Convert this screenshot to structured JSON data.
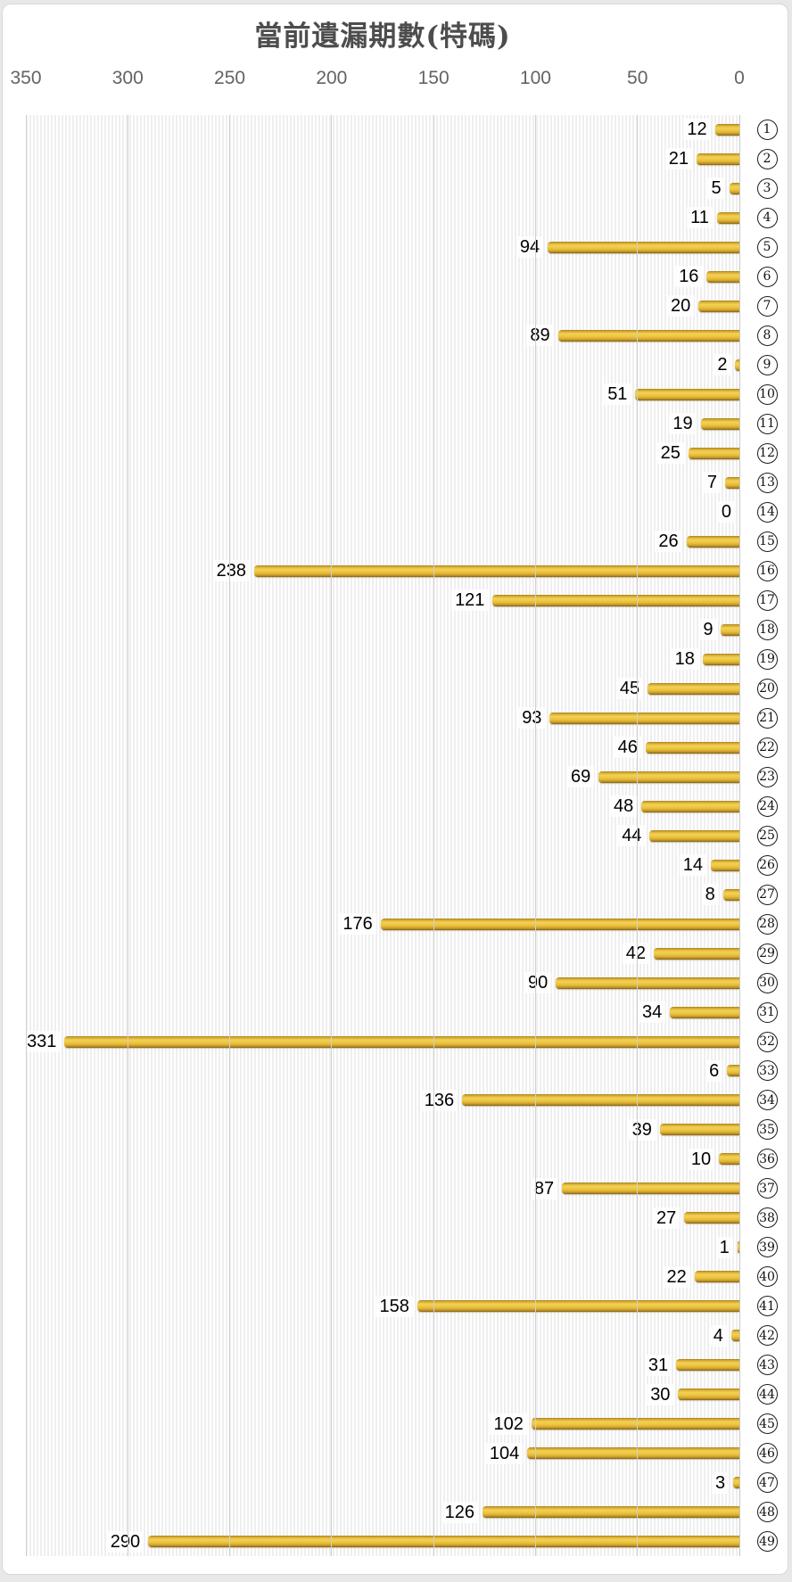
{
  "title": "當前遺漏期數(特碼)",
  "chart_data": {
    "type": "bar",
    "orientation": "horizontal",
    "title": "當前遺漏期數(特碼)",
    "axis": {
      "position": "top",
      "reversed": true,
      "min": 0,
      "max": 350,
      "ticks": [
        350,
        300,
        250,
        200,
        150,
        100,
        50,
        0
      ],
      "gridlines": true
    },
    "legend": null,
    "value_labels": "outside-end",
    "categories": [
      1,
      2,
      3,
      4,
      5,
      6,
      7,
      8,
      9,
      10,
      11,
      12,
      13,
      14,
      15,
      16,
      17,
      18,
      19,
      20,
      21,
      22,
      23,
      24,
      25,
      26,
      27,
      28,
      29,
      30,
      31,
      32,
      33,
      34,
      35,
      36,
      37,
      38,
      39,
      40,
      41,
      42,
      43,
      44,
      45,
      46,
      47,
      48,
      49
    ],
    "values": [
      12,
      21,
      5,
      11,
      94,
      16,
      20,
      89,
      2,
      51,
      19,
      25,
      7,
      0,
      26,
      238,
      121,
      9,
      18,
      45,
      93,
      46,
      69,
      48,
      44,
      14,
      8,
      176,
      42,
      90,
      34,
      331,
      6,
      136,
      39,
      10,
      87,
      27,
      1,
      22,
      158,
      4,
      31,
      30,
      102,
      104,
      3,
      126,
      290
    ],
    "colors": {
      "bar_main": "#eeca45",
      "bar_highlight": "#f2d055",
      "bar_shadow": "#7d6118",
      "title_text": "#4d4d4d",
      "axis_text": "#636363",
      "value_text": "#000000",
      "gridline": "#cfcfcf",
      "plot_stripe": "#efefef",
      "frame_border": "#d8d8d8",
      "background": "#ffffff"
    }
  }
}
